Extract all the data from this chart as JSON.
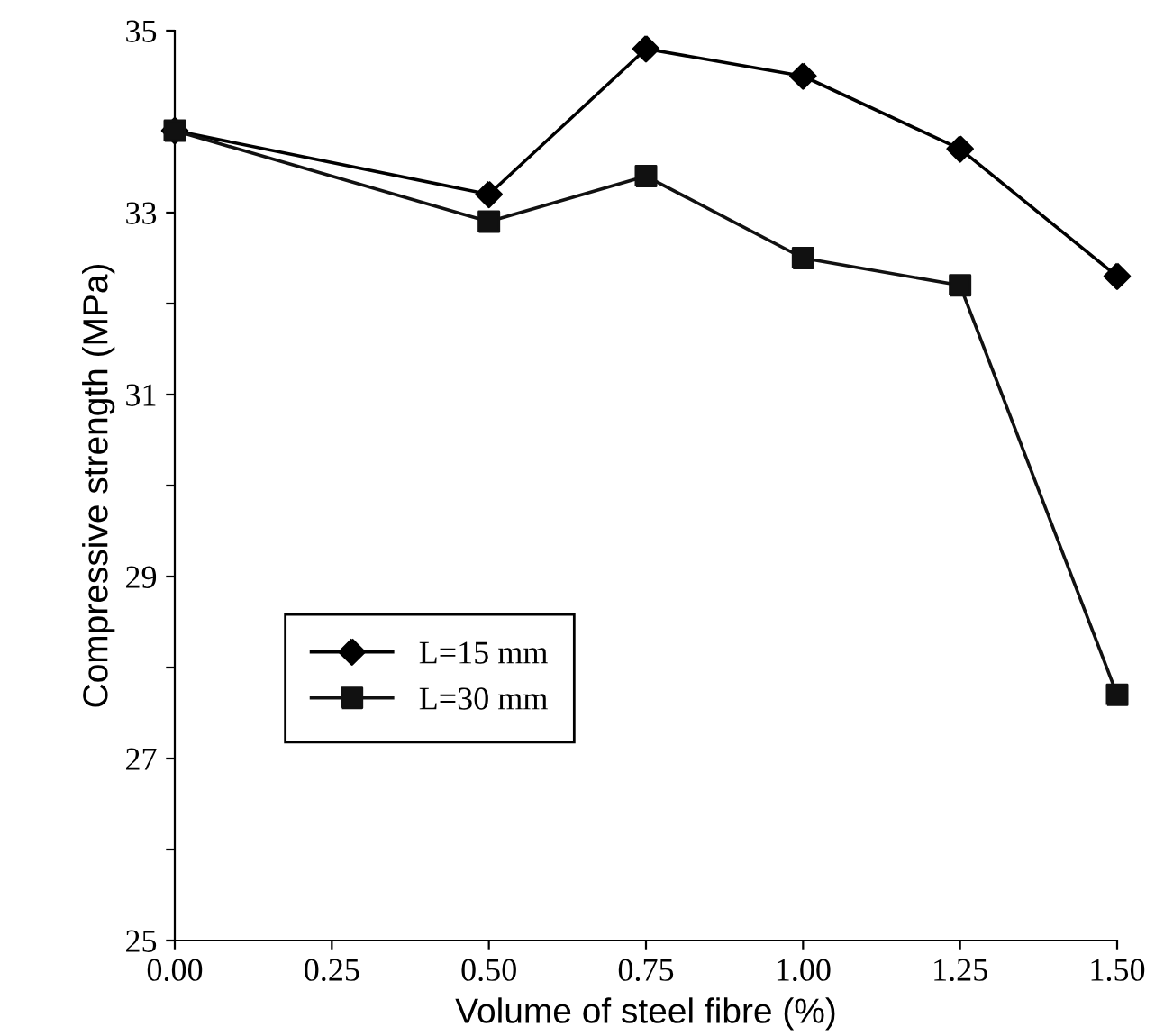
{
  "chart_data": {
    "type": "line",
    "xlabel": "Volume of steel fibre (%)",
    "ylabel": "Compressive strength (MPa)",
    "x": [
      0,
      0.5,
      0.75,
      1.0,
      1.25,
      1.5
    ],
    "series": [
      {
        "name": "L=15 mm",
        "color": "#000000",
        "marker": "diamond",
        "values": [
          33.9,
          33.2,
          34.8,
          34.5,
          33.7,
          32.3
        ]
      },
      {
        "name": "L=30 mm",
        "color": "#111111",
        "marker": "square",
        "values": [
          33.9,
          32.9,
          33.4,
          32.5,
          32.2,
          27.7
        ]
      }
    ],
    "xlim": [
      0,
      1.5
    ],
    "xticks": [
      {
        "value": 0,
        "label": "0.00"
      },
      {
        "value": 0.25,
        "label": "0.25"
      },
      {
        "value": 0.5,
        "label": "0.50"
      },
      {
        "value": 0.75,
        "label": "0.75"
      },
      {
        "value": 1.0,
        "label": "1.00"
      },
      {
        "value": 1.25,
        "label": "1.25"
      },
      {
        "value": 1.5,
        "label": "1.50"
      }
    ],
    "ylim": [
      25,
      35
    ],
    "yticks": [
      25,
      {
        "value": 26,
        "label": null
      },
      27,
      {
        "value": 28,
        "label": null
      },
      29,
      {
        "value": 30,
        "label": null
      },
      31,
      {
        "value": 32,
        "label": null
      },
      33,
      {
        "value": 34,
        "label": null
      },
      35
    ],
    "legend": "bottom left",
    "grid": false,
    "line_style": "solid"
  }
}
